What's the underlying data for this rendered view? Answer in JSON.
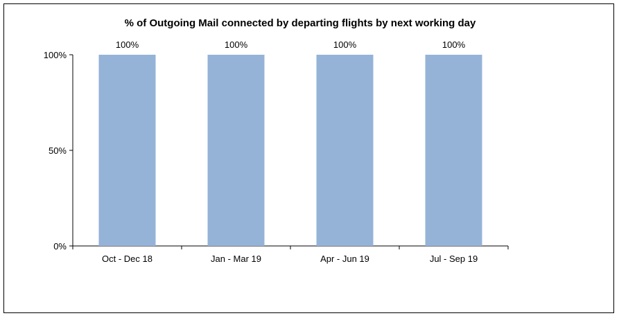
{
  "chart_data": {
    "type": "bar",
    "title": "% of Outgoing Mail connected by departing flights by next working day",
    "xlabel": "",
    "ylabel": "",
    "categories": [
      "Oct - Dec 18",
      "Jan - Mar 19",
      "Apr - Jun 19",
      "Jul - Sep 19"
    ],
    "values": [
      100,
      100,
      100,
      100
    ],
    "data_labels": [
      "100%",
      "100%",
      "100%",
      "100%"
    ],
    "ylim": [
      0,
      100
    ],
    "yticks": [
      0,
      50,
      100
    ],
    "ytick_labels": [
      "0%",
      "50%",
      "100%"
    ],
    "bar_color": "#95B3D7",
    "grid": false,
    "legend": "none"
  }
}
